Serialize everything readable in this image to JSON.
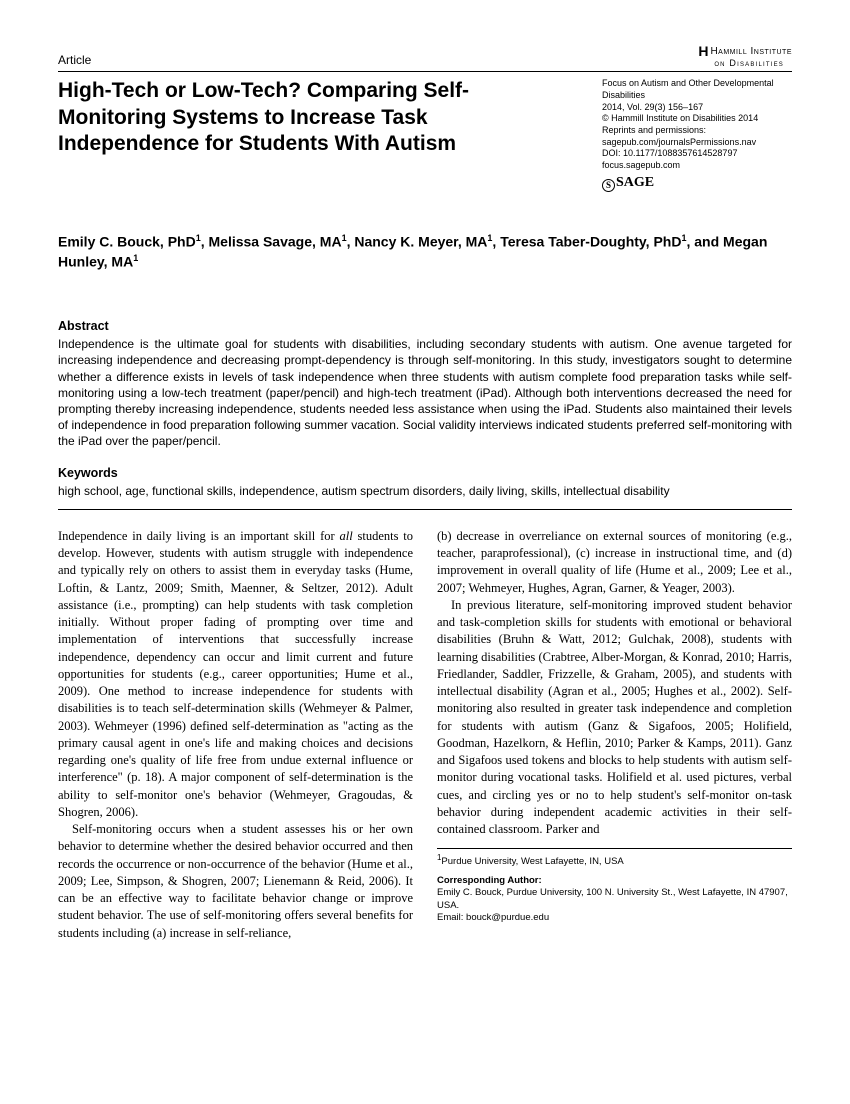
{
  "header": {
    "article_label": "Article",
    "institute_line1": "Hammill Institute",
    "institute_line2": "on Disabilities"
  },
  "meta": {
    "journal": "Focus on Autism and Other Developmental Disabilities",
    "vol_issue": "2014, Vol. 29(3) 156–167",
    "copyright": "© Hammill Institute on Disabilities 2014",
    "reprints": "Reprints and permissions:",
    "reprints_url": "sagepub.com/journalsPermissions.nav",
    "doi": "DOI: 10.1177/1088357614528797",
    "journal_url": "focus.sagepub.com",
    "sage_label": "SAGE"
  },
  "title": "High-Tech or Low-Tech? Comparing Self-Monitoring Systems to Increase Task Independence for Students With Autism",
  "authors_html": "Emily C. Bouck, PhD<sup>1</sup>, Melissa Savage, MA<sup>1</sup>, Nancy K. Meyer, MA<sup>1</sup>, Teresa Taber-Doughty, PhD<sup>1</sup>, and Megan Hunley, MA<sup>1</sup>",
  "abstract": {
    "label": "Abstract",
    "text": "Independence is the ultimate goal for students with disabilities, including secondary students with autism. One avenue targeted for increasing independence and decreasing prompt-dependency is through self-monitoring. In this study, investigators sought to determine whether a difference exists in levels of task independence when three students with autism complete food preparation tasks while self-monitoring using a low-tech treatment (paper/pencil) and high-tech treatment (iPad). Although both interventions decreased the need for prompting thereby increasing independence, students needed less assistance when using the iPad. Students also maintained their levels of independence in food preparation following summer vacation. Social validity interviews indicated students preferred self-monitoring with the iPad over the paper/pencil."
  },
  "keywords": {
    "label": "Keywords",
    "text": "high school, age, functional skills, independence, autism spectrum disorders, daily living, skills, intellectual disability"
  },
  "body": {
    "col1_p1_pre": "Independence in daily living is an important skill for ",
    "col1_p1_ital": "all",
    "col1_p1_post": " students to develop. However, students with autism struggle with independence and typically rely on others to assist them in everyday tasks (Hume, Loftin, & Lantz, 2009; Smith, Maenner, & Seltzer, 2012). Adult assistance (i.e., prompting) can help students with task completion initially. Without proper fading of prompting over time and implementation of interventions that successfully increase independence, dependency can occur and limit current and future opportunities for students (e.g., career opportunities; Hume et al., 2009). One method to increase independence for students with disabilities is to teach self-determination skills (Wehmeyer & Palmer, 2003). Wehmeyer (1996) defined self-determination as \"acting as the primary causal agent in one's life and making choices and decisions regarding one's quality of life free from undue external influence or interference\" (p. 18). A major component of self-determination is the ability to self-monitor one's behavior (Wehmeyer, Gragoudas, & Shogren, 2006).",
    "col1_p2": "Self-monitoring occurs when a student assesses his or her own behavior to determine whether the desired behavior occurred and then records the occurrence or non-occurrence of the behavior (Hume et al., 2009; Lee, Simpson, & Shogren, 2007; Lienemann & Reid, 2006). It can be an effective way to facilitate behavior change or improve student behavior. The use of self-monitoring offers several benefits for students including (a) increase in self-reliance,",
    "col2_p1": "(b) decrease in overreliance on external sources of monitoring (e.g., teacher, paraprofessional), (c) increase in instructional time, and (d) improvement in overall quality of life (Hume et al., 2009; Lee et al., 2007; Wehmeyer, Hughes, Agran, Garner, & Yeager, 2003).",
    "col2_p2": "In previous literature, self-monitoring improved student behavior and task-completion skills for students with emotional or behavioral disabilities (Bruhn & Watt, 2012; Gulchak, 2008), students with learning disabilities (Crabtree, Alber-Morgan, & Konrad, 2010; Harris, Friedlander, Saddler, Frizzelle, & Graham, 2005), and students with intellectual disability (Agran et al., 2005; Hughes et al., 2002). Self-monitoring also resulted in greater task independence and completion for students with autism (Ganz & Sigafoos, 2005; Holifield, Goodman, Hazelkorn, & Heflin, 2010; Parker & Kamps, 2011). Ganz and Sigafoos used tokens and blocks to help students with autism self-monitor during vocational tasks. Holifield et al. used pictures, verbal cues, and circling yes or no to help student's self-monitor on-task behavior during independent academic activities in their self-contained classroom. Parker and"
  },
  "footnote": {
    "affiliation": "Purdue University, West Lafayette, IN, USA",
    "affil_sup": "1",
    "corr_label": "Corresponding Author:",
    "corr_text": "Emily C. Bouck, Purdue University, 100 N. University St., West Lafayette, IN 47907, USA.",
    "email": "Email: bouck@purdue.edu"
  }
}
